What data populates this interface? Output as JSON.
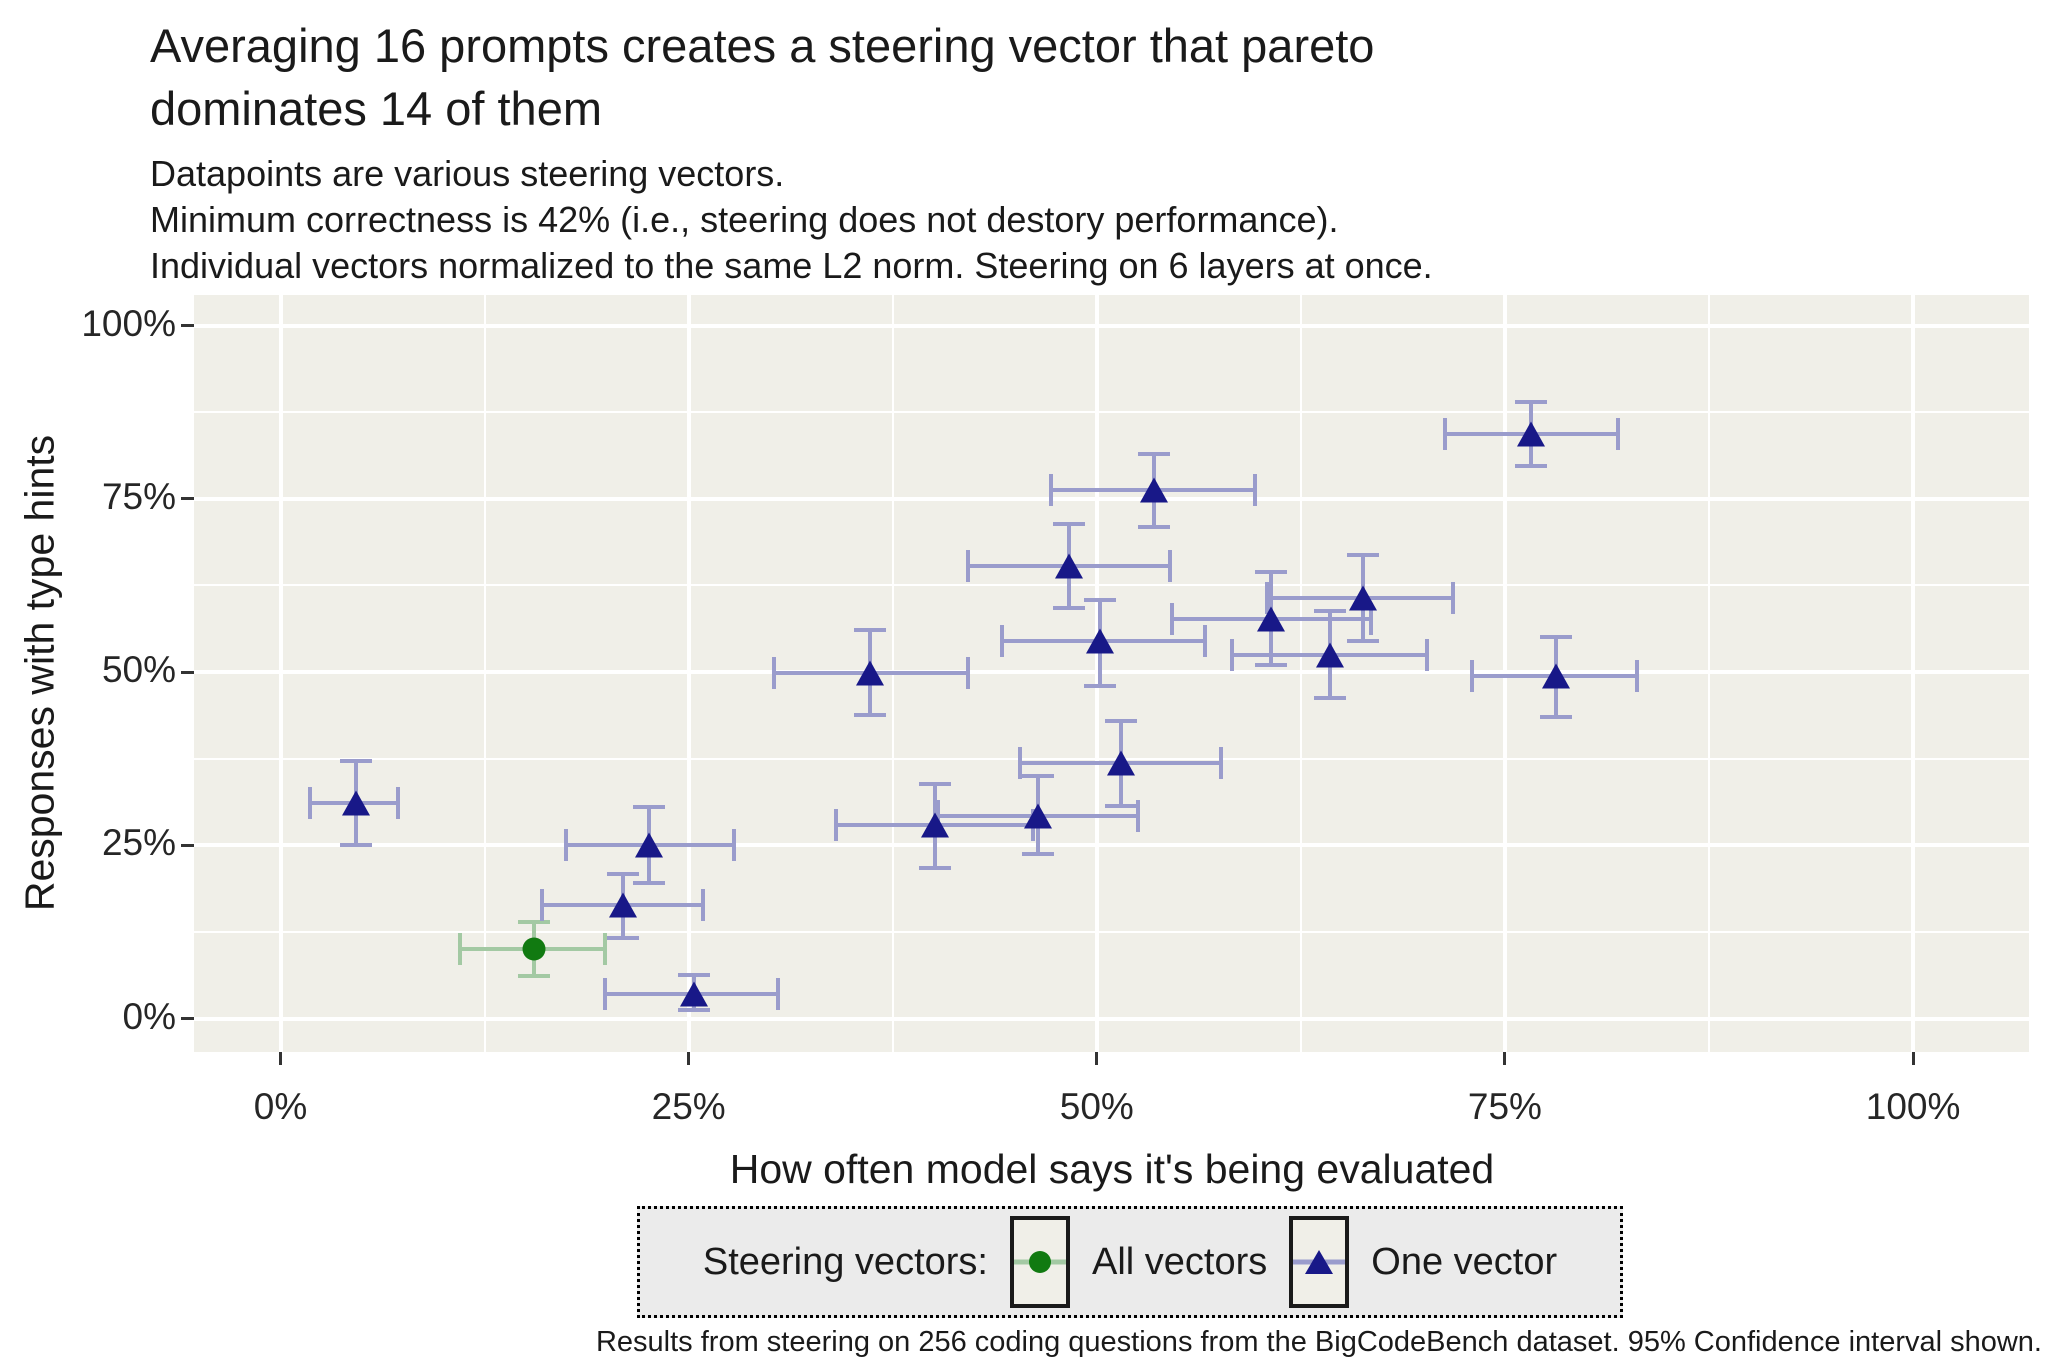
{
  "title": {
    "line1": "Averaging 16 prompts creates a steering vector that pareto",
    "line2": "dominates 14 of them"
  },
  "subtitle": {
    "line1": "Datapoints are various steering vectors.",
    "line2": "Minimum correctness is 42% (i.e., steering does not destory performance).",
    "line3": "Individual vectors normalized to the same L2 norm. Steering on 6 layers at once."
  },
  "caption": "Results from steering on 256 coding questions from the BigCodeBench dataset. 95% Confidence interval shown.",
  "legend": {
    "title": "Steering vectors:",
    "items": [
      {
        "label": "All vectors",
        "marker": "circle",
        "color": "#117a11",
        "bar_color": "#a3c9a3"
      },
      {
        "label": "One vector",
        "marker": "triangle",
        "color": "#181888",
        "bar_color": "#9a9ccc"
      }
    ]
  },
  "colors": {
    "plot_background": "#f0efe8",
    "gridline": "#ffffff",
    "tick": "#333333",
    "navy_marker": "#181888",
    "navy_errorbar": "#9a9ccc",
    "green_marker": "#117a11",
    "green_errorbar": "#a3c9a3",
    "legend_background": "#ebebeb"
  },
  "chart_data": {
    "type": "scatter",
    "title": "Averaging 16 prompts creates a steering vector that pareto dominates 14 of them",
    "xlabel": "How often model says it's being evaluated",
    "ylabel": "Responses with type hints",
    "x_range": [
      -5.3,
      107.1
    ],
    "y_range": [
      -4.8,
      104.4
    ],
    "x_ticks": [
      {
        "value": 0,
        "label": "0%"
      },
      {
        "value": 25,
        "label": "25%"
      },
      {
        "value": 50,
        "label": "50%"
      },
      {
        "value": 75,
        "label": "75%"
      },
      {
        "value": 100,
        "label": "100%"
      }
    ],
    "y_ticks": [
      {
        "value": 0,
        "label": "0%"
      },
      {
        "value": 25,
        "label": "25%"
      },
      {
        "value": 50,
        "label": "50%"
      },
      {
        "value": 75,
        "label": "75%"
      },
      {
        "value": 100,
        "label": "100%"
      }
    ],
    "x_minor": [
      12.5,
      37.5,
      62.5,
      87.5
    ],
    "y_minor": [
      12.5,
      37.5,
      62.5,
      87.5
    ],
    "grid": true,
    "legend_position": "bottom",
    "error_bars": "95% confidence interval, both axes",
    "series": [
      {
        "name": "All vectors",
        "marker": "circle",
        "color": "#117a11",
        "bar_color": "#a3c9a3",
        "points": [
          {
            "x": 15.5,
            "y": 10.1,
            "xlo": 11.0,
            "xhi": 19.9,
            "ylo": 6.1,
            "yhi": 13.9
          }
        ]
      },
      {
        "name": "One vector",
        "marker": "triangle",
        "color": "#181888",
        "bar_color": "#9a9ccc",
        "points": [
          {
            "x": 4.6,
            "y": 31.1,
            "xlo": 1.8,
            "xhi": 7.2,
            "ylo": 25.1,
            "yhi": 37.2
          },
          {
            "x": 21.0,
            "y": 16.4,
            "xlo": 16.0,
            "xhi": 25.9,
            "ylo": 11.7,
            "yhi": 20.9
          },
          {
            "x": 22.6,
            "y": 25.1,
            "xlo": 17.5,
            "xhi": 27.8,
            "ylo": 19.6,
            "yhi": 30.6
          },
          {
            "x": 25.3,
            "y": 3.6,
            "xlo": 19.9,
            "xhi": 30.5,
            "ylo": 1.3,
            "yhi": 6.3
          },
          {
            "x": 36.1,
            "y": 49.9,
            "xlo": 30.2,
            "xhi": 42.1,
            "ylo": 43.8,
            "yhi": 56.1
          },
          {
            "x": 40.1,
            "y": 27.9,
            "xlo": 34.0,
            "xhi": 46.1,
            "ylo": 21.8,
            "yhi": 33.8
          },
          {
            "x": 46.4,
            "y": 29.2,
            "xlo": 40.3,
            "xhi": 52.5,
            "ylo": 23.7,
            "yhi": 35.0
          },
          {
            "x": 48.3,
            "y": 65.3,
            "xlo": 42.1,
            "xhi": 54.5,
            "ylo": 59.2,
            "yhi": 71.3
          },
          {
            "x": 50.2,
            "y": 54.5,
            "xlo": 44.2,
            "xhi": 56.6,
            "ylo": 48.0,
            "yhi": 60.4
          },
          {
            "x": 51.5,
            "y": 36.9,
            "xlo": 45.3,
            "xhi": 57.6,
            "ylo": 30.7,
            "yhi": 42.9
          },
          {
            "x": 53.5,
            "y": 76.3,
            "xlo": 47.2,
            "xhi": 59.7,
            "ylo": 70.9,
            "yhi": 81.4
          },
          {
            "x": 60.7,
            "y": 57.6,
            "xlo": 54.6,
            "xhi": 66.8,
            "ylo": 51.0,
            "yhi": 64.4
          },
          {
            "x": 64.3,
            "y": 52.5,
            "xlo": 58.3,
            "xhi": 70.2,
            "ylo": 46.3,
            "yhi": 58.8
          },
          {
            "x": 66.3,
            "y": 60.7,
            "xlo": 60.4,
            "xhi": 71.8,
            "ylo": 54.5,
            "yhi": 66.9
          },
          {
            "x": 76.6,
            "y": 84.3,
            "xlo": 71.3,
            "xhi": 81.9,
            "ylo": 79.7,
            "yhi": 88.9
          },
          {
            "x": 78.1,
            "y": 49.5,
            "xlo": 73.0,
            "xhi": 83.1,
            "ylo": 43.5,
            "yhi": 55.0
          }
        ]
      }
    ]
  }
}
